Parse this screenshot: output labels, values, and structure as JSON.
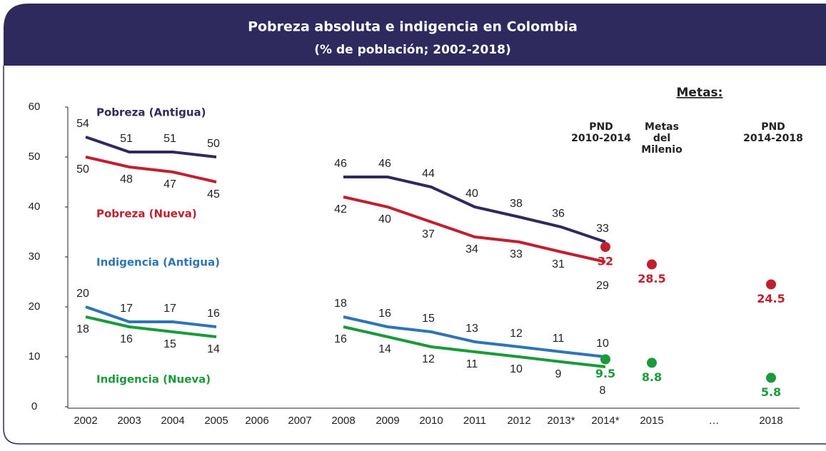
{
  "chart_data": {
    "type": "line",
    "title": "Pobreza absoluta e indigencia en Colombia",
    "subtitle": "(% de población; 2002-2018)",
    "categories": [
      "2002",
      "2003",
      "2004",
      "2005",
      "2006",
      "2007",
      "2008",
      "2009",
      "2010",
      "2011",
      "2012",
      "2013*",
      "2014*",
      "2015",
      "…",
      "2018"
    ],
    "ylim": [
      0,
      60
    ],
    "yticks": [
      0,
      10,
      20,
      30,
      40,
      50,
      60
    ],
    "grid": false,
    "series": [
      {
        "name": "Pobreza (Antigua)",
        "color": "#2e2a5e",
        "values": [
          54,
          51,
          51,
          50,
          null,
          null,
          46,
          46,
          44,
          40,
          38,
          36,
          33,
          null,
          null,
          null
        ]
      },
      {
        "name": "Pobreza (Nueva)",
        "color": "#c0202e",
        "values": [
          50,
          48,
          47,
          45,
          null,
          null,
          42,
          40,
          37,
          34,
          33,
          31,
          29,
          null,
          null,
          null
        ]
      },
      {
        "name": "Indigencia (Antigua)",
        "color": "#2e75b6",
        "values": [
          20,
          17,
          17,
          16,
          null,
          null,
          18,
          16,
          15,
          13,
          12,
          11,
          10,
          null,
          null,
          null
        ]
      },
      {
        "name": "Indigencia (Nueva)",
        "color": "#1a9a3a",
        "values": [
          18,
          16,
          15,
          14,
          null,
          null,
          16,
          14,
          12,
          11,
          10,
          9,
          8,
          null,
          null,
          null
        ]
      }
    ],
    "targets": [
      {
        "color": "#c0202e",
        "values": [
          null,
          null,
          null,
          null,
          null,
          null,
          null,
          null,
          null,
          null,
          null,
          null,
          32,
          28.5,
          null,
          24.5
        ]
      },
      {
        "color": "#1a9a3a",
        "values": [
          null,
          null,
          null,
          null,
          null,
          null,
          null,
          null,
          null,
          null,
          null,
          null,
          9.5,
          8.8,
          null,
          5.8
        ]
      }
    ],
    "annotations": {
      "metas": "Metas:",
      "pnd1": [
        "PND",
        "2010-2014"
      ],
      "milenio": [
        "Metas",
        "del",
        "Milenio"
      ],
      "pnd2": [
        "PND",
        "2014-2018"
      ]
    }
  }
}
